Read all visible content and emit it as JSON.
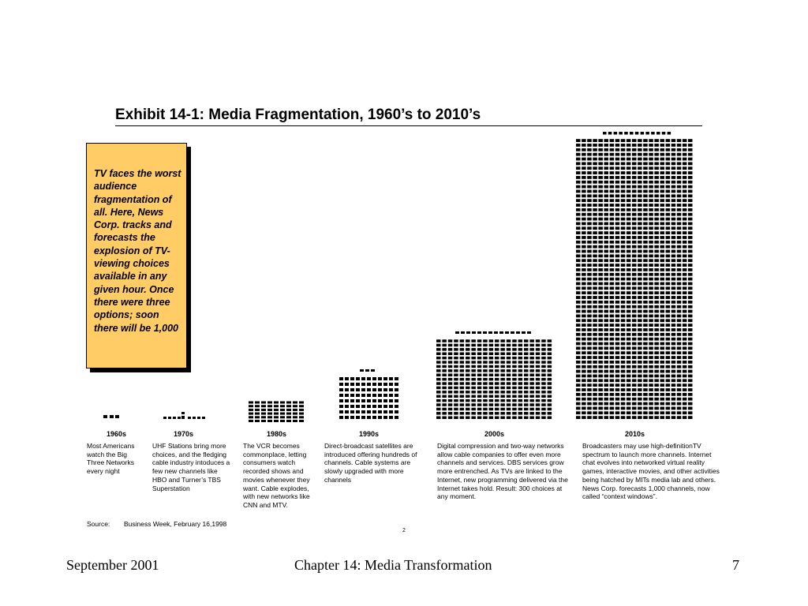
{
  "exhibit": {
    "title": "Exhibit 14-1:  Media Fragmentation, 1960’s to 2010’s"
  },
  "callout": {
    "text": "TV faces the worst audience fragmentation of all.  Here, News Corp. tracks and forecasts the explosion of TV-viewing choices available in any given hour. Once there were three options; soon there will be 1,000"
  },
  "decades": [
    {
      "label": "1960s",
      "description": "Most Americans watch the Big Three Networks every night"
    },
    {
      "label": "1970s",
      "description": "UHF Stations bring more choices, and the fledging cable industry intoduces a few new channels like HBO and Turner’s TBS Superstation"
    },
    {
      "label": "1980s",
      "description": "The VCR becomes commonplace, letting consumers watch recorded shows and movies whenever they want. Cable explodes, with new networks like CNN and MTV."
    },
    {
      "label": "1990s",
      "description": "Direct-broadcast satellites are introduced offering hundreds of channels.  Cable systems are slowly upgraded with more channels"
    },
    {
      "label": "2000s",
      "description": "Digital compression and two-way networks allow cable companies to offer even more channels and services.  DBS services grow more entrenched.  As TVs are linked to the Internet, new programming delivered via the Internet takes hold.  Result: 300 choices at any moment."
    },
    {
      "label": "2010s",
      "description": "Broadcasters may use high-definitionTV spectrum to launch more channels. Internet chat evolves into networked virtual reality games, interactive movies, and other activities being hatched by MITs media lab and others.  News Corp. forecasts 1,000 channels, now called “context windows”."
    }
  ],
  "source": {
    "label": "Source:",
    "value": "Business Week, February 16,1998"
  },
  "page_number": "2",
  "footer": {
    "date": "September 2001",
    "chapter": "Chapter 14: Media Transformation",
    "slide_number": "7"
  },
  "colors": {
    "callout_fill": "#ffcc66",
    "block": "#000000",
    "background": "#ffffff"
  }
}
